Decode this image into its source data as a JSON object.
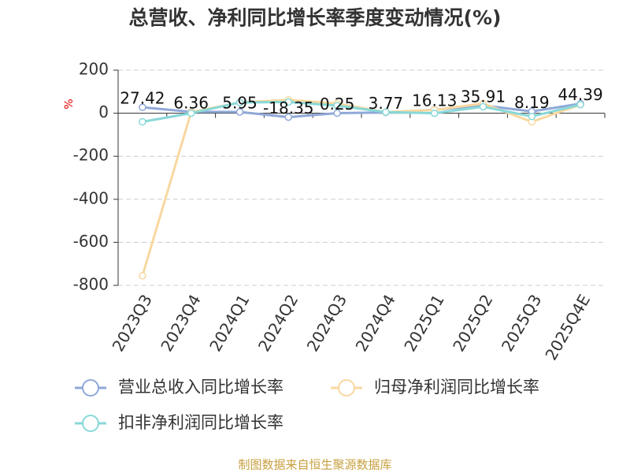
{
  "chart_data": {
    "type": "line",
    "title": "总营收、净利同比增长率季度变动情况(%)",
    "y_label": "%",
    "source": "制图数据来自恒生聚源数据库",
    "categories": [
      "2023Q3",
      "2023Q4",
      "2024Q1",
      "2024Q2",
      "2024Q3",
      "2024Q4",
      "2025Q1",
      "2025Q2",
      "2025Q3",
      "2025Q4E"
    ],
    "series": [
      {
        "name": "营业总收入同比增长率",
        "color": "#8fa8d8",
        "values": [
          27.42,
          6.36,
          5.95,
          -18.35,
          0.25,
          3.77,
          16.13,
          35.91,
          8.19,
          44.39
        ]
      },
      {
        "name": "归母净利润同比增长率",
        "color": "#f8d8a0",
        "values": [
          -755,
          5,
          50,
          62,
          45,
          5,
          15,
          45,
          -40,
          40
        ]
      },
      {
        "name": "扣非净利润同比增长率",
        "color": "#88d8d8",
        "values": [
          -40,
          0,
          50,
          52,
          35,
          5,
          0,
          30,
          -15,
          40
        ]
      }
    ],
    "ylim": [
      -800,
      200
    ],
    "yticks": [
      200,
      0,
      -200,
      -400,
      -600,
      -800
    ],
    "grid": true
  }
}
